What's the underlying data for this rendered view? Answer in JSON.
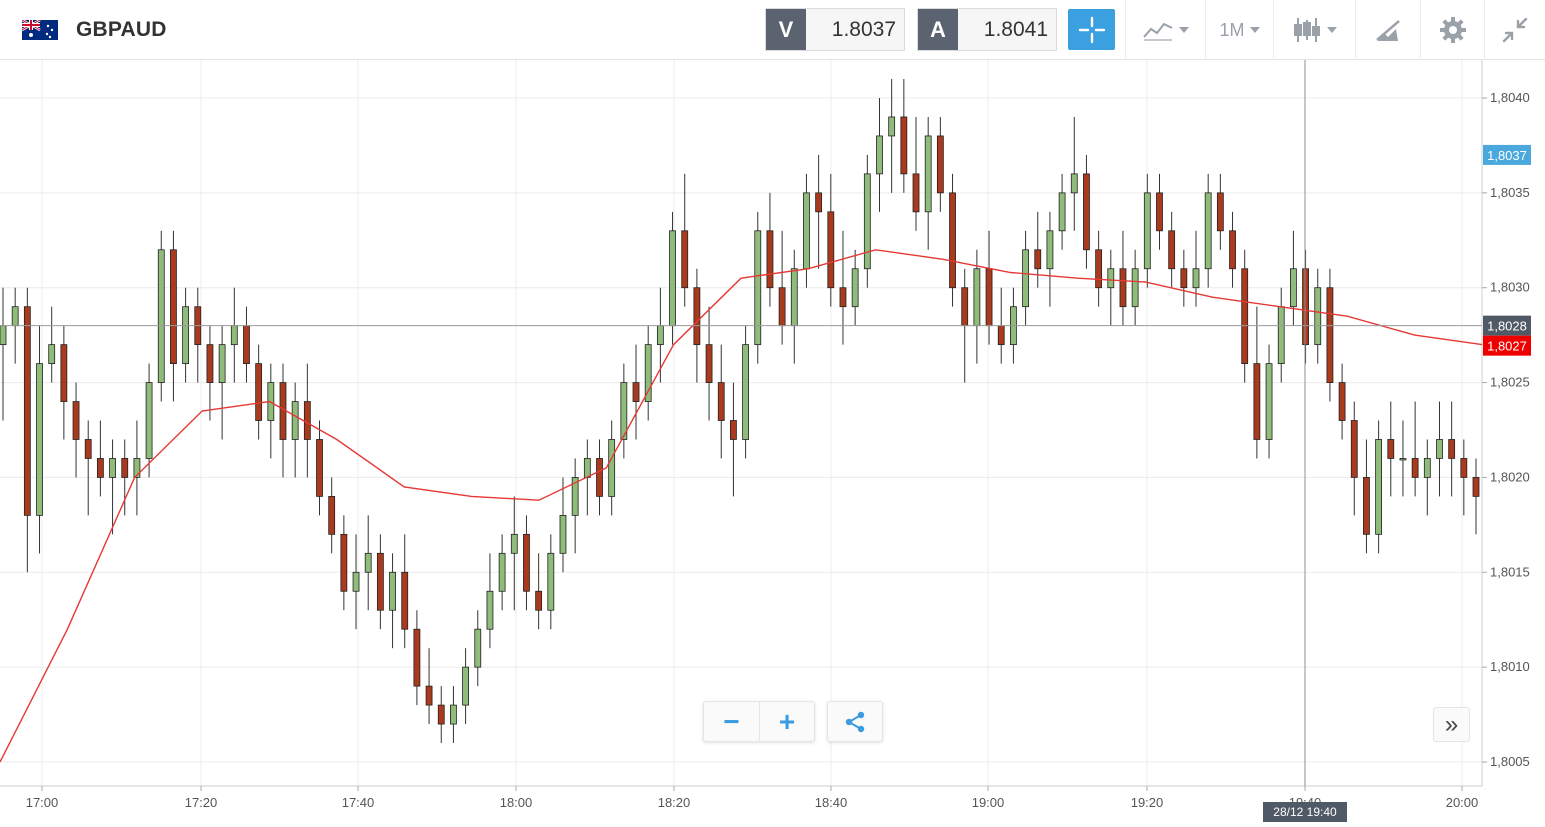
{
  "header": {
    "pair": "GBPAUD",
    "flag_icon": "gb-au-flag-icon",
    "sell": {
      "tag": "V",
      "price": "1.8037"
    },
    "buy": {
      "tag": "A",
      "price": "1.8041"
    },
    "timeframe": "1M"
  },
  "chart_data": {
    "type": "candlestick",
    "symbol": "GBPAUD",
    "interval": "1 minute",
    "x_ticks": [
      "17:00",
      "17:20",
      "17:40",
      "18:00",
      "18:20",
      "18:40",
      "19:00",
      "19:20",
      "19:40",
      "20:00"
    ],
    "y_ticks": [
      "1,8040",
      "1,8035",
      "1,8030",
      "1,8025",
      "1,8020",
      "1,8015",
      "1,8010",
      "1,8005"
    ],
    "ylim": [
      1.8003,
      1.8042
    ],
    "grid": true,
    "price_labels": {
      "ask_line": "1,8037",
      "current": "1,8028",
      "moving_average": "1,8027"
    },
    "crosshair_time": "28/12 19:40",
    "colors": {
      "up": "#8fbc7a",
      "down": "#a93a1e",
      "ma_line": "#e53935",
      "ask_label": "#4aa8dc",
      "current_label": "#505a66",
      "ma_label": "#ee0000"
    },
    "candles_ohlc": [
      [
        1.8027,
        1.803,
        1.8023,
        1.8028
      ],
      [
        1.8028,
        1.803,
        1.8026,
        1.8029
      ],
      [
        1.8029,
        1.803,
        1.8015,
        1.8018
      ],
      [
        1.8018,
        1.8028,
        1.8016,
        1.8026
      ],
      [
        1.8026,
        1.8029,
        1.8025,
        1.8027
      ],
      [
        1.8027,
        1.8028,
        1.8022,
        1.8024
      ],
      [
        1.8024,
        1.8025,
        1.802,
        1.8022
      ],
      [
        1.8022,
        1.8023,
        1.8018,
        1.8021
      ],
      [
        1.8021,
        1.8023,
        1.8019,
        1.802
      ],
      [
        1.802,
        1.8022,
        1.8017,
        1.8021
      ],
      [
        1.8021,
        1.8022,
        1.8018,
        1.802
      ],
      [
        1.802,
        1.8023,
        1.8018,
        1.8021
      ],
      [
        1.8021,
        1.8026,
        1.802,
        1.8025
      ],
      [
        1.8025,
        1.8033,
        1.8024,
        1.8032
      ],
      [
        1.8032,
        1.8033,
        1.8024,
        1.8026
      ],
      [
        1.8026,
        1.803,
        1.8025,
        1.8029
      ],
      [
        1.8029,
        1.803,
        1.8025,
        1.8027
      ],
      [
        1.8027,
        1.8028,
        1.8023,
        1.8025
      ],
      [
        1.8025,
        1.8028,
        1.8022,
        1.8027
      ],
      [
        1.8027,
        1.803,
        1.8025,
        1.8028
      ],
      [
        1.8028,
        1.8029,
        1.8025,
        1.8026
      ],
      [
        1.8026,
        1.8027,
        1.8022,
        1.8023
      ],
      [
        1.8023,
        1.8026,
        1.8021,
        1.8025
      ],
      [
        1.8025,
        1.8026,
        1.802,
        1.8022
      ],
      [
        1.8022,
        1.8025,
        1.802,
        1.8024
      ],
      [
        1.8024,
        1.8026,
        1.802,
        1.8022
      ],
      [
        1.8022,
        1.8023,
        1.8018,
        1.8019
      ],
      [
        1.8019,
        1.802,
        1.8016,
        1.8017
      ],
      [
        1.8017,
        1.8018,
        1.8013,
        1.8014
      ],
      [
        1.8014,
        1.8017,
        1.8012,
        1.8015
      ],
      [
        1.8015,
        1.8018,
        1.8013,
        1.8016
      ],
      [
        1.8016,
        1.8017,
        1.8012,
        1.8013
      ],
      [
        1.8013,
        1.8016,
        1.8011,
        1.8015
      ],
      [
        1.8015,
        1.8017,
        1.8011,
        1.8012
      ],
      [
        1.8012,
        1.8013,
        1.8008,
        1.8009
      ],
      [
        1.8009,
        1.8011,
        1.8007,
        1.8008
      ],
      [
        1.8008,
        1.8009,
        1.8006,
        1.8007
      ],
      [
        1.8007,
        1.8009,
        1.8006,
        1.8008
      ],
      [
        1.8008,
        1.8011,
        1.8007,
        1.801
      ],
      [
        1.801,
        1.8013,
        1.8009,
        1.8012
      ],
      [
        1.8012,
        1.8016,
        1.8011,
        1.8014
      ],
      [
        1.8014,
        1.8017,
        1.8013,
        1.8016
      ],
      [
        1.8016,
        1.8019,
        1.8013,
        1.8017
      ],
      [
        1.8017,
        1.8018,
        1.8013,
        1.8014
      ],
      [
        1.8014,
        1.8016,
        1.8012,
        1.8013
      ],
      [
        1.8013,
        1.8017,
        1.8012,
        1.8016
      ],
      [
        1.8016,
        1.802,
        1.8015,
        1.8018
      ],
      [
        1.8018,
        1.8021,
        1.8016,
        1.802
      ],
      [
        1.802,
        1.8022,
        1.8018,
        1.8021
      ],
      [
        1.8021,
        1.8022,
        1.8018,
        1.8019
      ],
      [
        1.8019,
        1.8023,
        1.8018,
        1.8022
      ],
      [
        1.8022,
        1.8026,
        1.8021,
        1.8025
      ],
      [
        1.8025,
        1.8027,
        1.8022,
        1.8024
      ],
      [
        1.8024,
        1.8028,
        1.8023,
        1.8027
      ],
      [
        1.8027,
        1.803,
        1.8025,
        1.8028
      ],
      [
        1.8028,
        1.8034,
        1.8027,
        1.8033
      ],
      [
        1.8033,
        1.8036,
        1.8029,
        1.803
      ],
      [
        1.803,
        1.8031,
        1.8025,
        1.8027
      ],
      [
        1.8027,
        1.8029,
        1.8023,
        1.8025
      ],
      [
        1.8025,
        1.8027,
        1.8021,
        1.8023
      ],
      [
        1.8023,
        1.8025,
        1.8019,
        1.8022
      ],
      [
        1.8022,
        1.8028,
        1.8021,
        1.8027
      ],
      [
        1.8027,
        1.8034,
        1.8026,
        1.8033
      ],
      [
        1.8033,
        1.8035,
        1.8029,
        1.803
      ],
      [
        1.803,
        1.8033,
        1.8027,
        1.8028
      ],
      [
        1.8028,
        1.8032,
        1.8026,
        1.8031
      ],
      [
        1.8031,
        1.8036,
        1.803,
        1.8035
      ],
      [
        1.8035,
        1.8037,
        1.8031,
        1.8034
      ],
      [
        1.8034,
        1.8036,
        1.8029,
        1.803
      ],
      [
        1.803,
        1.8033,
        1.8027,
        1.8029
      ],
      [
        1.8029,
        1.8032,
        1.8028,
        1.8031
      ],
      [
        1.8031,
        1.8037,
        1.803,
        1.8036
      ],
      [
        1.8036,
        1.804,
        1.8034,
        1.8038
      ],
      [
        1.8038,
        1.8041,
        1.8035,
        1.8039
      ],
      [
        1.8039,
        1.8041,
        1.8035,
        1.8036
      ],
      [
        1.8036,
        1.8039,
        1.8033,
        1.8034
      ],
      [
        1.8034,
        1.8039,
        1.8032,
        1.8038
      ],
      [
        1.8038,
        1.8039,
        1.8034,
        1.8035
      ],
      [
        1.8035,
        1.8036,
        1.8029,
        1.803
      ],
      [
        1.803,
        1.8031,
        1.8025,
        1.8028
      ],
      [
        1.8028,
        1.8032,
        1.8026,
        1.8031
      ],
      [
        1.8031,
        1.8033,
        1.8027,
        1.8028
      ],
      [
        1.8028,
        1.803,
        1.8026,
        1.8027
      ],
      [
        1.8027,
        1.803,
        1.8026,
        1.8029
      ],
      [
        1.8029,
        1.8033,
        1.8028,
        1.8032
      ],
      [
        1.8032,
        1.8034,
        1.803,
        1.8031
      ],
      [
        1.8031,
        1.8034,
        1.8029,
        1.8033
      ],
      [
        1.8033,
        1.8036,
        1.8032,
        1.8035
      ],
      [
        1.8035,
        1.8039,
        1.8033,
        1.8036
      ],
      [
        1.8036,
        1.8037,
        1.8031,
        1.8032
      ],
      [
        1.8032,
        1.8033,
        1.8029,
        1.803
      ],
      [
        1.803,
        1.8032,
        1.8028,
        1.8031
      ],
      [
        1.8031,
        1.8033,
        1.8028,
        1.8029
      ],
      [
        1.8029,
        1.8032,
        1.8028,
        1.8031
      ],
      [
        1.8031,
        1.8036,
        1.803,
        1.8035
      ],
      [
        1.8035,
        1.8036,
        1.8032,
        1.8033
      ],
      [
        1.8033,
        1.8034,
        1.803,
        1.8031
      ],
      [
        1.8031,
        1.8032,
        1.8029,
        1.803
      ],
      [
        1.803,
        1.8033,
        1.8029,
        1.8031
      ],
      [
        1.8031,
        1.8036,
        1.803,
        1.8035
      ],
      [
        1.8035,
        1.8036,
        1.8032,
        1.8033
      ],
      [
        1.8033,
        1.8034,
        1.803,
        1.8031
      ],
      [
        1.8031,
        1.8032,
        1.8025,
        1.8026
      ],
      [
        1.8026,
        1.8029,
        1.8021,
        1.8022
      ],
      [
        1.8022,
        1.8027,
        1.8021,
        1.8026
      ],
      [
        1.8026,
        1.803,
        1.8025,
        1.8029
      ],
      [
        1.8029,
        1.8033,
        1.8028,
        1.8031
      ],
      [
        1.8031,
        1.8032,
        1.8026,
        1.8027
      ],
      [
        1.8027,
        1.8031,
        1.8026,
        1.803
      ],
      [
        1.803,
        1.8031,
        1.8024,
        1.8025
      ],
      [
        1.8025,
        1.8026,
        1.8022,
        1.8023
      ],
      [
        1.8023,
        1.8024,
        1.8018,
        1.802
      ],
      [
        1.802,
        1.8022,
        1.8016,
        1.8017
      ],
      [
        1.8017,
        1.8023,
        1.8016,
        1.8022
      ],
      [
        1.8022,
        1.8024,
        1.8019,
        1.8021
      ],
      [
        1.8021,
        1.8023,
        1.8019,
        1.8021
      ],
      [
        1.8021,
        1.8024,
        1.8019,
        1.802
      ],
      [
        1.802,
        1.8022,
        1.8018,
        1.8021
      ],
      [
        1.8021,
        1.8024,
        1.8019,
        1.8022
      ],
      [
        1.8022,
        1.8024,
        1.8019,
        1.8021
      ],
      [
        1.8021,
        1.8022,
        1.8018,
        1.802
      ],
      [
        1.802,
        1.8021,
        1.8017,
        1.8019
      ]
    ],
    "ma_series": [
      1.8005,
      1.8012,
      1.802,
      1.80235,
      1.8024,
      1.8022,
      1.80195,
      1.8019,
      1.80188,
      1.80205,
      1.8027,
      1.80305,
      1.8031,
      1.8032,
      1.80315,
      1.80308,
      1.80305,
      1.80303,
      1.80295,
      1.8029,
      1.80285,
      1.80275,
      1.8027
    ]
  },
  "ui": {
    "zoom_out": "−",
    "zoom_in": "+",
    "forward": "»"
  }
}
